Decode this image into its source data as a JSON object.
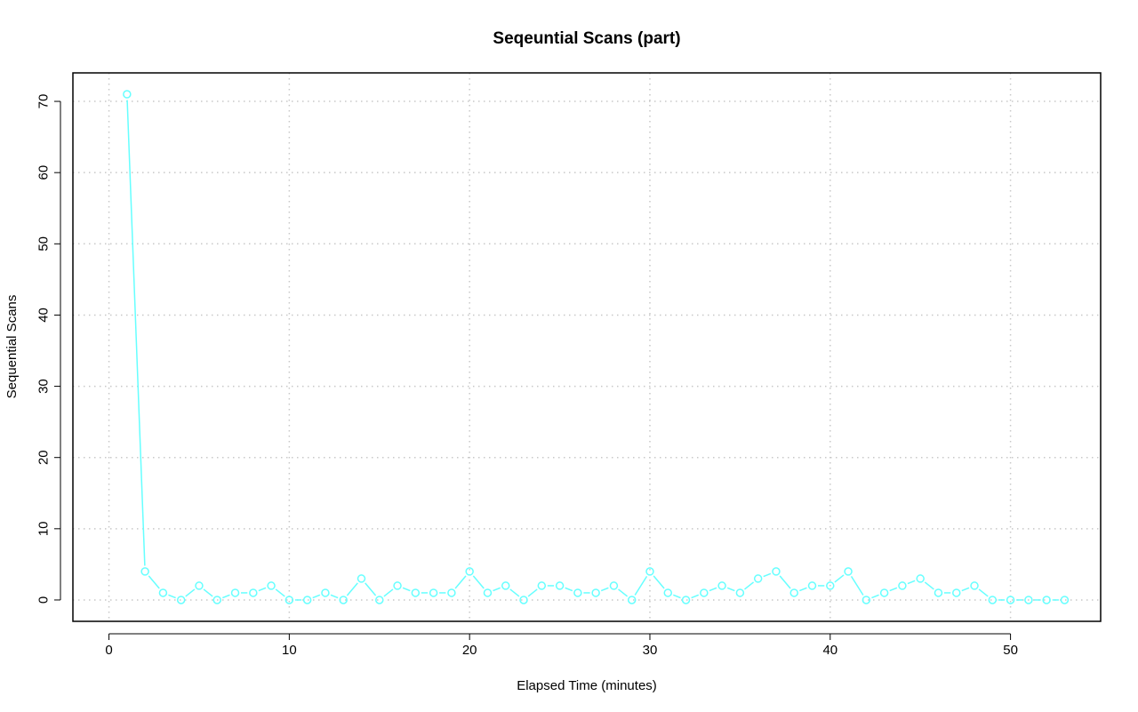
{
  "chart_data": {
    "type": "line",
    "title": "Seqeuntial Scans (part)",
    "xlabel": "Elapsed Time (minutes)",
    "ylabel": "Sequential Scans",
    "xlim": [
      -2,
      55
    ],
    "ylim": [
      -3,
      74
    ],
    "x_ticks": [
      0,
      10,
      20,
      30,
      40,
      50
    ],
    "y_ticks": [
      0,
      10,
      20,
      30,
      40,
      50,
      60,
      70
    ],
    "grid": true,
    "legend": "none",
    "series": [
      {
        "color": "#66ffff",
        "marker": "open-circle",
        "x": [
          1,
          2,
          3,
          4,
          5,
          6,
          7,
          8,
          9,
          10,
          11,
          12,
          13,
          14,
          15,
          16,
          17,
          18,
          19,
          20,
          21,
          22,
          23,
          24,
          25,
          26,
          27,
          28,
          29,
          30,
          31,
          32,
          33,
          34,
          35,
          36,
          37,
          38,
          39,
          40,
          41,
          42,
          43,
          44,
          45,
          46,
          47,
          48,
          49,
          50,
          51,
          52,
          53
        ],
        "y": [
          71,
          4,
          1,
          0,
          2,
          0,
          1,
          1,
          2,
          0,
          0,
          1,
          0,
          3,
          0,
          2,
          1,
          1,
          1,
          4,
          1,
          2,
          0,
          2,
          2,
          1,
          1,
          2,
          0,
          4,
          1,
          0,
          1,
          2,
          1,
          3,
          4,
          1,
          2,
          2,
          4,
          0,
          1,
          2,
          3,
          1,
          1,
          2,
          0,
          0,
          0,
          0,
          0
        ]
      }
    ]
  }
}
